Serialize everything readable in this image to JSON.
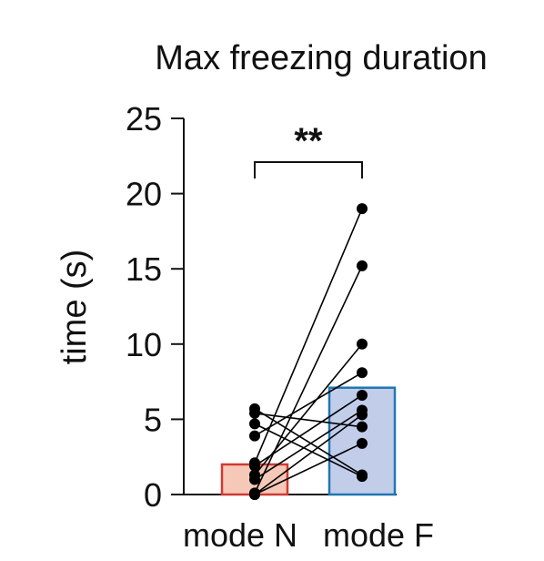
{
  "chart_data": {
    "type": "bar",
    "title": "Max freezing duration",
    "xlabel": "",
    "ylabel": "time (s)",
    "ylim": [
      0,
      25
    ],
    "yticks": [
      0,
      5,
      10,
      15,
      20,
      25
    ],
    "grid": false,
    "legend": "none",
    "categories": [
      "mode N",
      "mode F"
    ],
    "bar_values": [
      2.0,
      7.1
    ],
    "bar_fill_colors": [
      "#f6c8b8",
      "#c2cdea"
    ],
    "bar_edge_colors": [
      "#d03a33",
      "#1f77b4"
    ],
    "significance": {
      "label": "**",
      "between": [
        "mode N",
        "mode F"
      ]
    },
    "paired_points": [
      {
        "mode_N": 5.7,
        "mode_F": 1.3
      },
      {
        "mode_N": 5.4,
        "mode_F": 4.5
      },
      {
        "mode_N": 4.7,
        "mode_F": 1.2
      },
      {
        "mode_N": 3.9,
        "mode_F": 8.1
      },
      {
        "mode_N": 2.1,
        "mode_F": 19.0
      },
      {
        "mode_N": 1.9,
        "mode_F": 6.6
      },
      {
        "mode_N": 1.3,
        "mode_F": 10.0
      },
      {
        "mode_N": 1.0,
        "mode_F": 5.6
      },
      {
        "mode_N": 0.1,
        "mode_F": 15.2
      },
      {
        "mode_N": 0.0,
        "mode_F": 5.3
      },
      {
        "mode_N": 0.0,
        "mode_F": 3.4
      }
    ],
    "point_color": "#000000"
  }
}
